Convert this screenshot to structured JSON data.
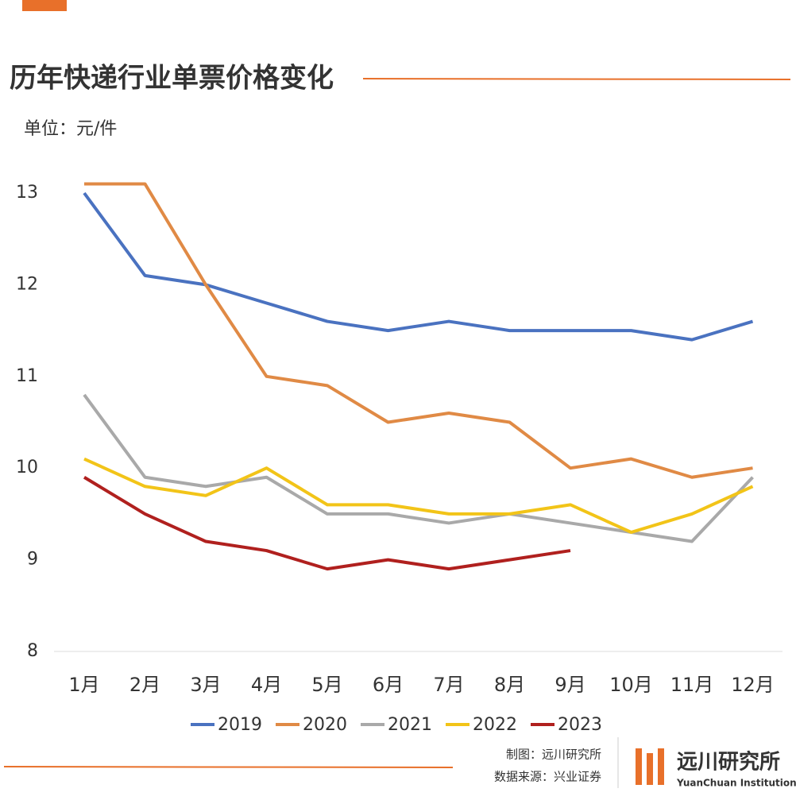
{
  "chart_data": {
    "type": "line",
    "title": "历年快递行业单票价格变化",
    "unit": "单位：元/件",
    "categories": [
      "1月",
      "2月",
      "3月",
      "4月",
      "5月",
      "6月",
      "7月",
      "8月",
      "9月",
      "10月",
      "11月",
      "12月"
    ],
    "series": [
      {
        "name": "2019",
        "color": "#4a72c0",
        "values": [
          13.0,
          12.1,
          12.0,
          11.8,
          11.6,
          11.5,
          11.6,
          11.5,
          11.5,
          11.5,
          11.4,
          11.6
        ]
      },
      {
        "name": "2020",
        "color": "#e08a45",
        "values": [
          13.1,
          13.1,
          12.0,
          11.0,
          10.9,
          10.5,
          10.6,
          10.5,
          10.0,
          10.1,
          9.9,
          10.0
        ]
      },
      {
        "name": "2021",
        "color": "#a9a9a9",
        "values": [
          10.8,
          9.9,
          9.8,
          9.9,
          9.5,
          9.5,
          9.4,
          9.5,
          9.4,
          9.3,
          9.2,
          9.9
        ]
      },
      {
        "name": "2022",
        "color": "#f2c418",
        "values": [
          10.1,
          9.8,
          9.7,
          10.0,
          9.6,
          9.6,
          9.5,
          9.5,
          9.6,
          9.3,
          9.5,
          9.8
        ]
      },
      {
        "name": "2023",
        "color": "#b0201e",
        "values": [
          9.9,
          9.5,
          9.2,
          9.1,
          8.9,
          9.0,
          8.9,
          9.0,
          9.1,
          null,
          null,
          null
        ]
      }
    ],
    "ylim": [
      8,
      13
    ],
    "yticks": [
      8,
      9,
      10,
      11,
      12,
      13
    ],
    "grid": false,
    "legend": "bottom",
    "credits": [
      "制图：远川研究所",
      "数据来源：兴业证券"
    ],
    "logo": {
      "name": "远川研究所",
      "subtitle": "YuanChuan Institution"
    }
  }
}
